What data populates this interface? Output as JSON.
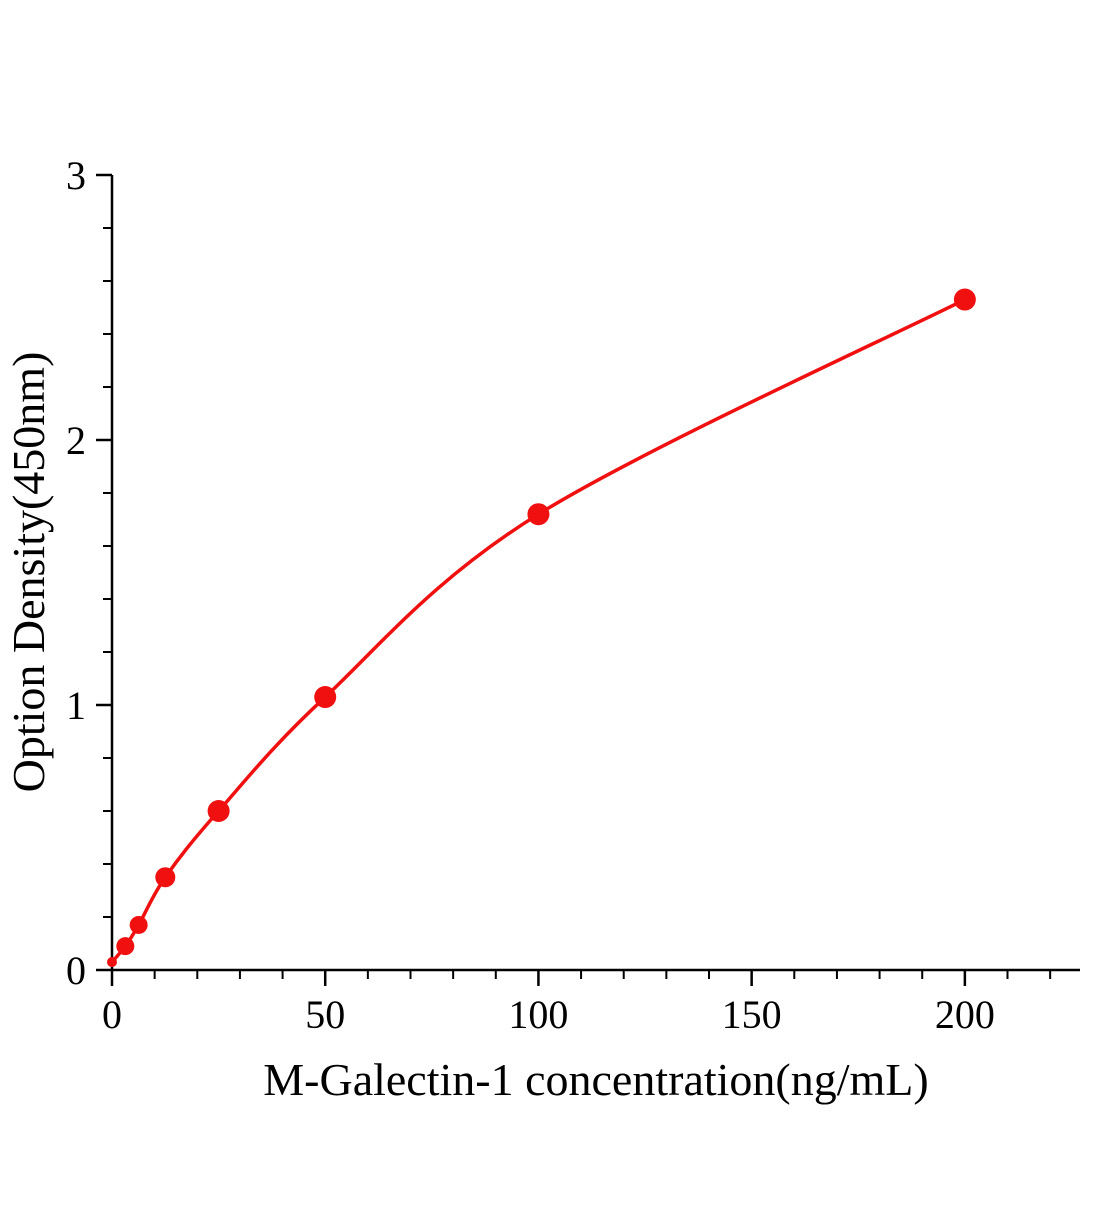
{
  "chart_data": {
    "type": "line",
    "subtype": "scatter-with-smooth-curve",
    "title": "",
    "xlabel": "M-Galectin-1 concentration(ng/mL)",
    "ylabel": "Option Density(450nm)",
    "x": [
      0,
      3.125,
      6.25,
      12.5,
      25,
      50,
      100,
      200
    ],
    "y": [
      0.03,
      0.09,
      0.17,
      0.35,
      0.6,
      1.03,
      1.72,
      2.53
    ],
    "marker_radii": [
      5,
      9,
      9,
      10,
      11,
      11,
      11,
      11
    ],
    "xlim": [
      0,
      227
    ],
    "ylim": [
      0,
      3
    ],
    "x_major_ticks": [
      0,
      50,
      100,
      150,
      200
    ],
    "y_major_ticks": [
      0,
      1,
      2,
      3
    ],
    "x_minor_step": 10,
    "y_minor_step": 0.2,
    "grid": false,
    "legend": "none",
    "colors": {
      "curve": "#f01010",
      "marker": "#f01010",
      "axis": "#000000",
      "background": "#ffffff"
    }
  }
}
